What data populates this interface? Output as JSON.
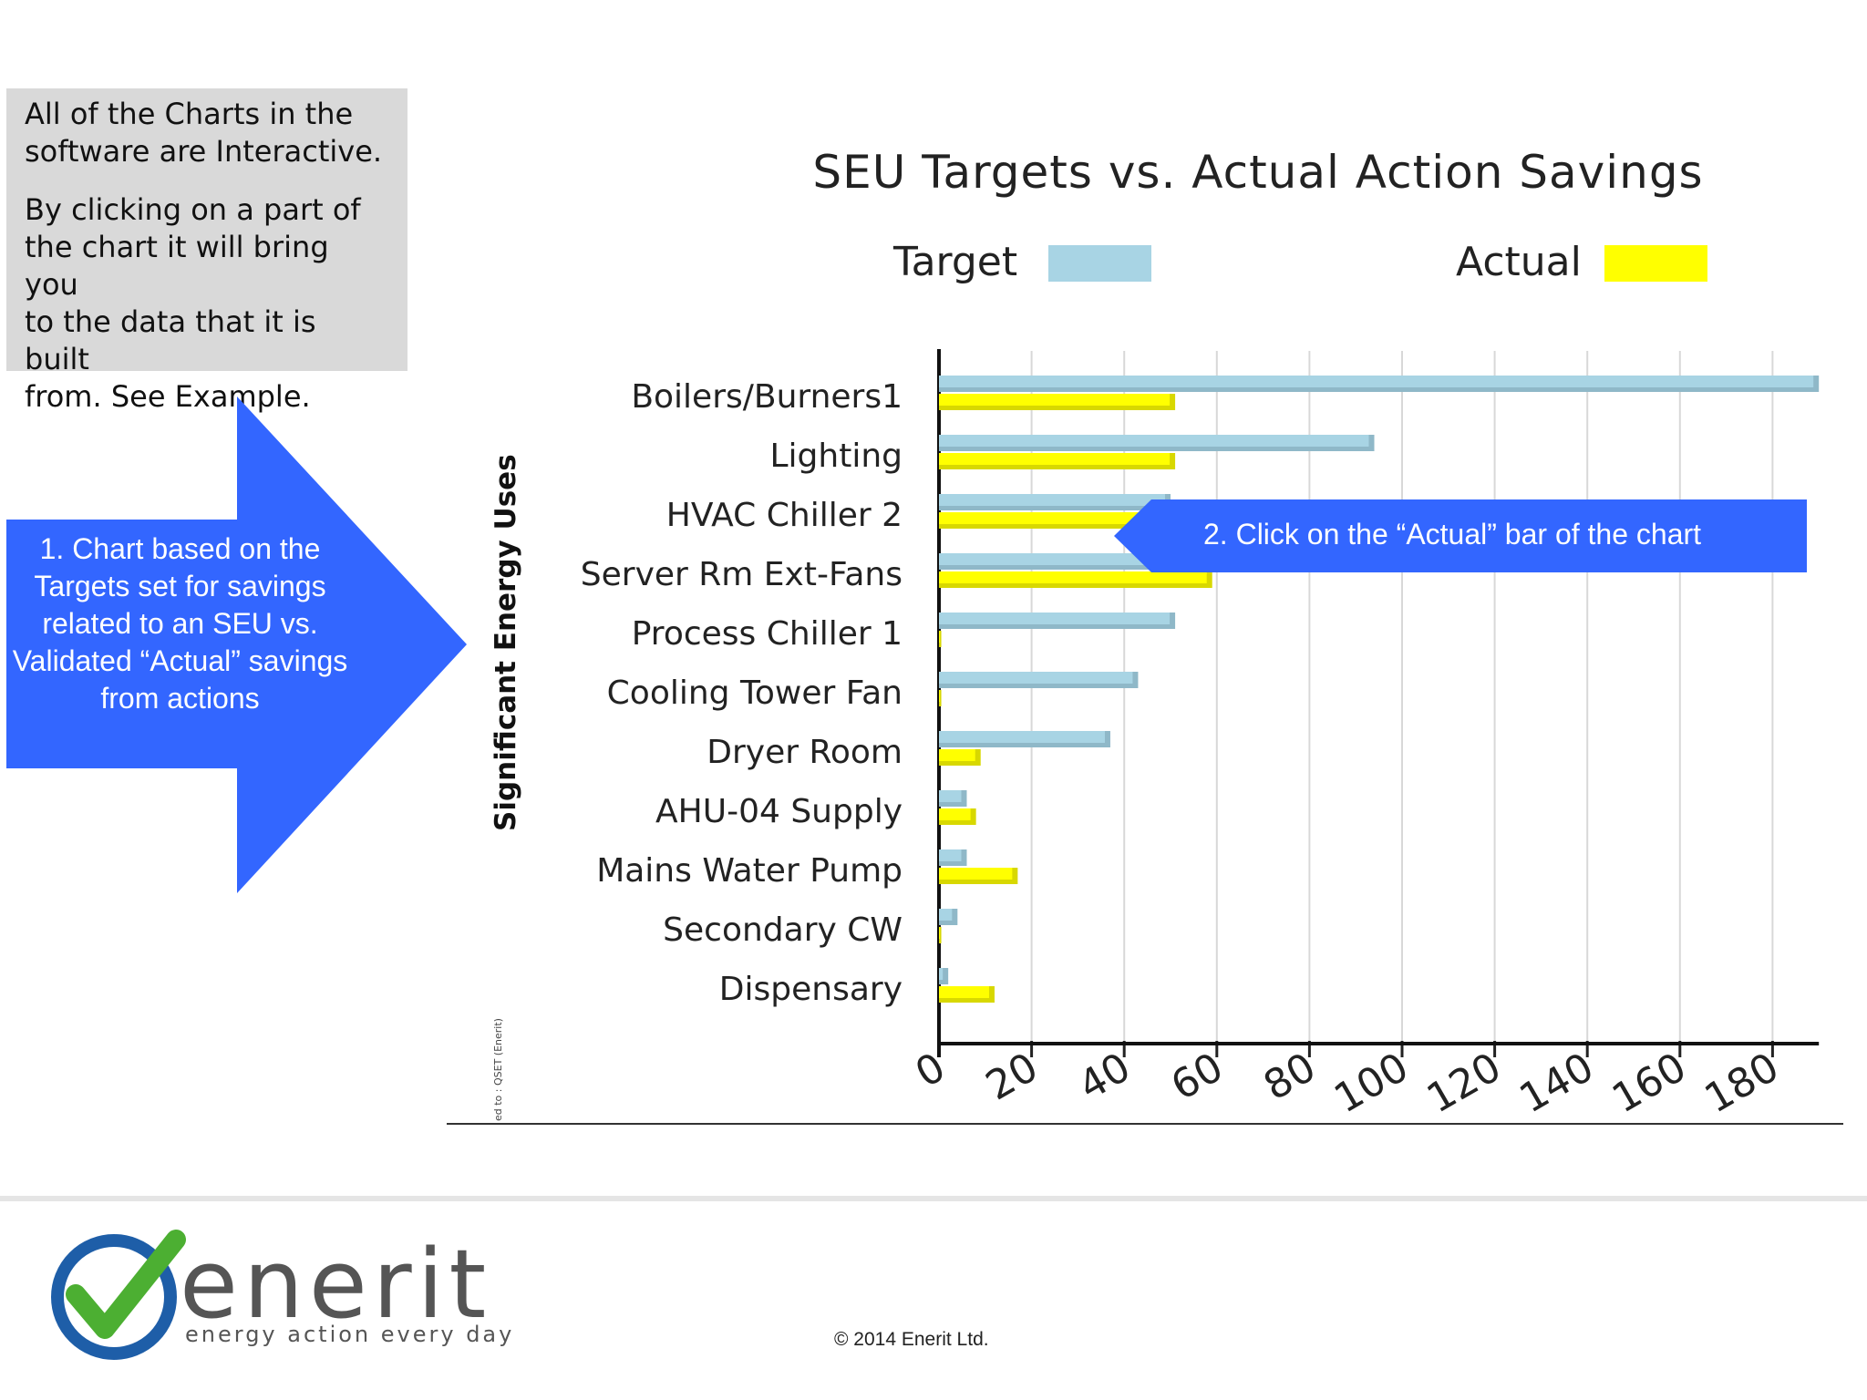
{
  "info_box": {
    "line1": "All of the Charts in the\nsoftware are Interactive.",
    "line2": "By clicking on a part of\nthe chart it will bring you\nto the data that it is built\nfrom. See Example."
  },
  "arrow_left": {
    "text": "1. Chart based on the Targets set for savings related to an SEU vs. Validated “Actual” savings from actions"
  },
  "callout": {
    "text": "2. Click on the “Actual” bar of the chart"
  },
  "chart_data": {
    "type": "bar",
    "orientation": "horizontal",
    "title": "SEU Targets vs. Actual Action Savings",
    "ylabel": "Significant Energy Uses",
    "xlabel": "",
    "xlim": [
      0,
      190
    ],
    "x_ticks": [
      0,
      20,
      40,
      60,
      80,
      100,
      120,
      140,
      160,
      180
    ],
    "grid": true,
    "legend_position": "top",
    "categories": [
      "Boilers/Burners1",
      "Lighting",
      "HVAC Chiller 2",
      "Server Rm Ext-Fans",
      "Process Chiller 1",
      "Cooling Tower Fan",
      "Dryer Room",
      "AHU-04 Supply",
      "Mains Water Pump",
      "Secondary CW",
      "Dispensary"
    ],
    "series": [
      {
        "name": "Target",
        "color": "#a8d4e4",
        "values": [
          190,
          94,
          50,
          74,
          51,
          43,
          37,
          6,
          6,
          4,
          2
        ]
      },
      {
        "name": "Actual",
        "color": "#ffff00",
        "values": [
          51,
          51,
          54,
          59,
          0.5,
          0.5,
          9,
          8,
          17,
          0.5,
          12
        ]
      }
    ]
  },
  "credit_text": "ed to : QSET (Enerit)",
  "logo": {
    "brand": "enerit",
    "tagline": "energy action every day"
  },
  "footer": {
    "copyright": "© 2014 Enerit Ltd."
  }
}
